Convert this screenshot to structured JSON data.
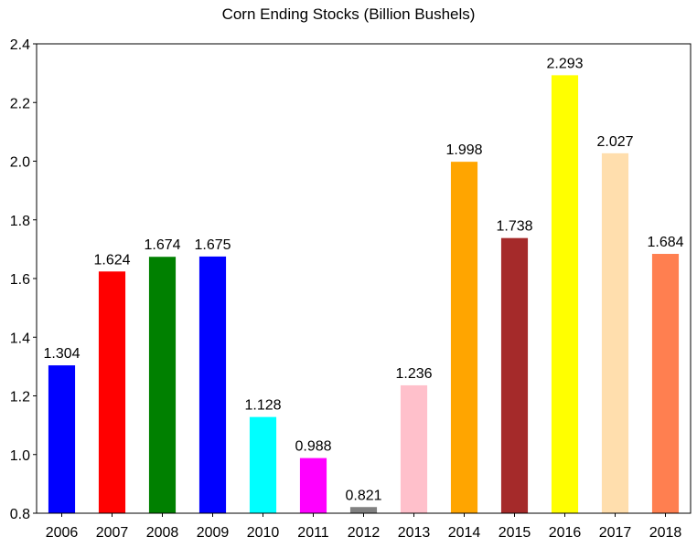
{
  "chart_data": {
    "type": "bar",
    "title": "Corn Ending Stocks (Billion Bushels)",
    "xlabel": "",
    "ylabel": "",
    "ylim": [
      0.8,
      2.4
    ],
    "yticks": [
      "0.8",
      "1.0",
      "1.2",
      "1.4",
      "1.6",
      "1.8",
      "2.0",
      "2.2",
      "2.4"
    ],
    "grid": false,
    "categories": [
      "2006",
      "2007",
      "2008",
      "2009",
      "2010",
      "2011",
      "2012",
      "2013",
      "2014",
      "2015",
      "2016",
      "2017",
      "2018"
    ],
    "values": [
      1.304,
      1.624,
      1.674,
      1.675,
      1.128,
      0.988,
      0.821,
      1.236,
      1.998,
      1.738,
      2.293,
      2.027,
      1.684
    ],
    "labels": [
      "1.304",
      "1.624",
      "1.674",
      "1.675",
      "1.128",
      "0.988",
      "0.821",
      "1.236",
      "1.998",
      "1.738",
      "2.293",
      "2.027",
      "1.684"
    ],
    "colors": [
      "#0000ff",
      "#ff0000",
      "#008000",
      "#0000ff",
      "#00ffff",
      "#ff00ff",
      "#808080",
      "#ffc0cb",
      "#ffa500",
      "#a52a2a",
      "#ffff00",
      "#ffdead",
      "#ff7f50"
    ]
  }
}
